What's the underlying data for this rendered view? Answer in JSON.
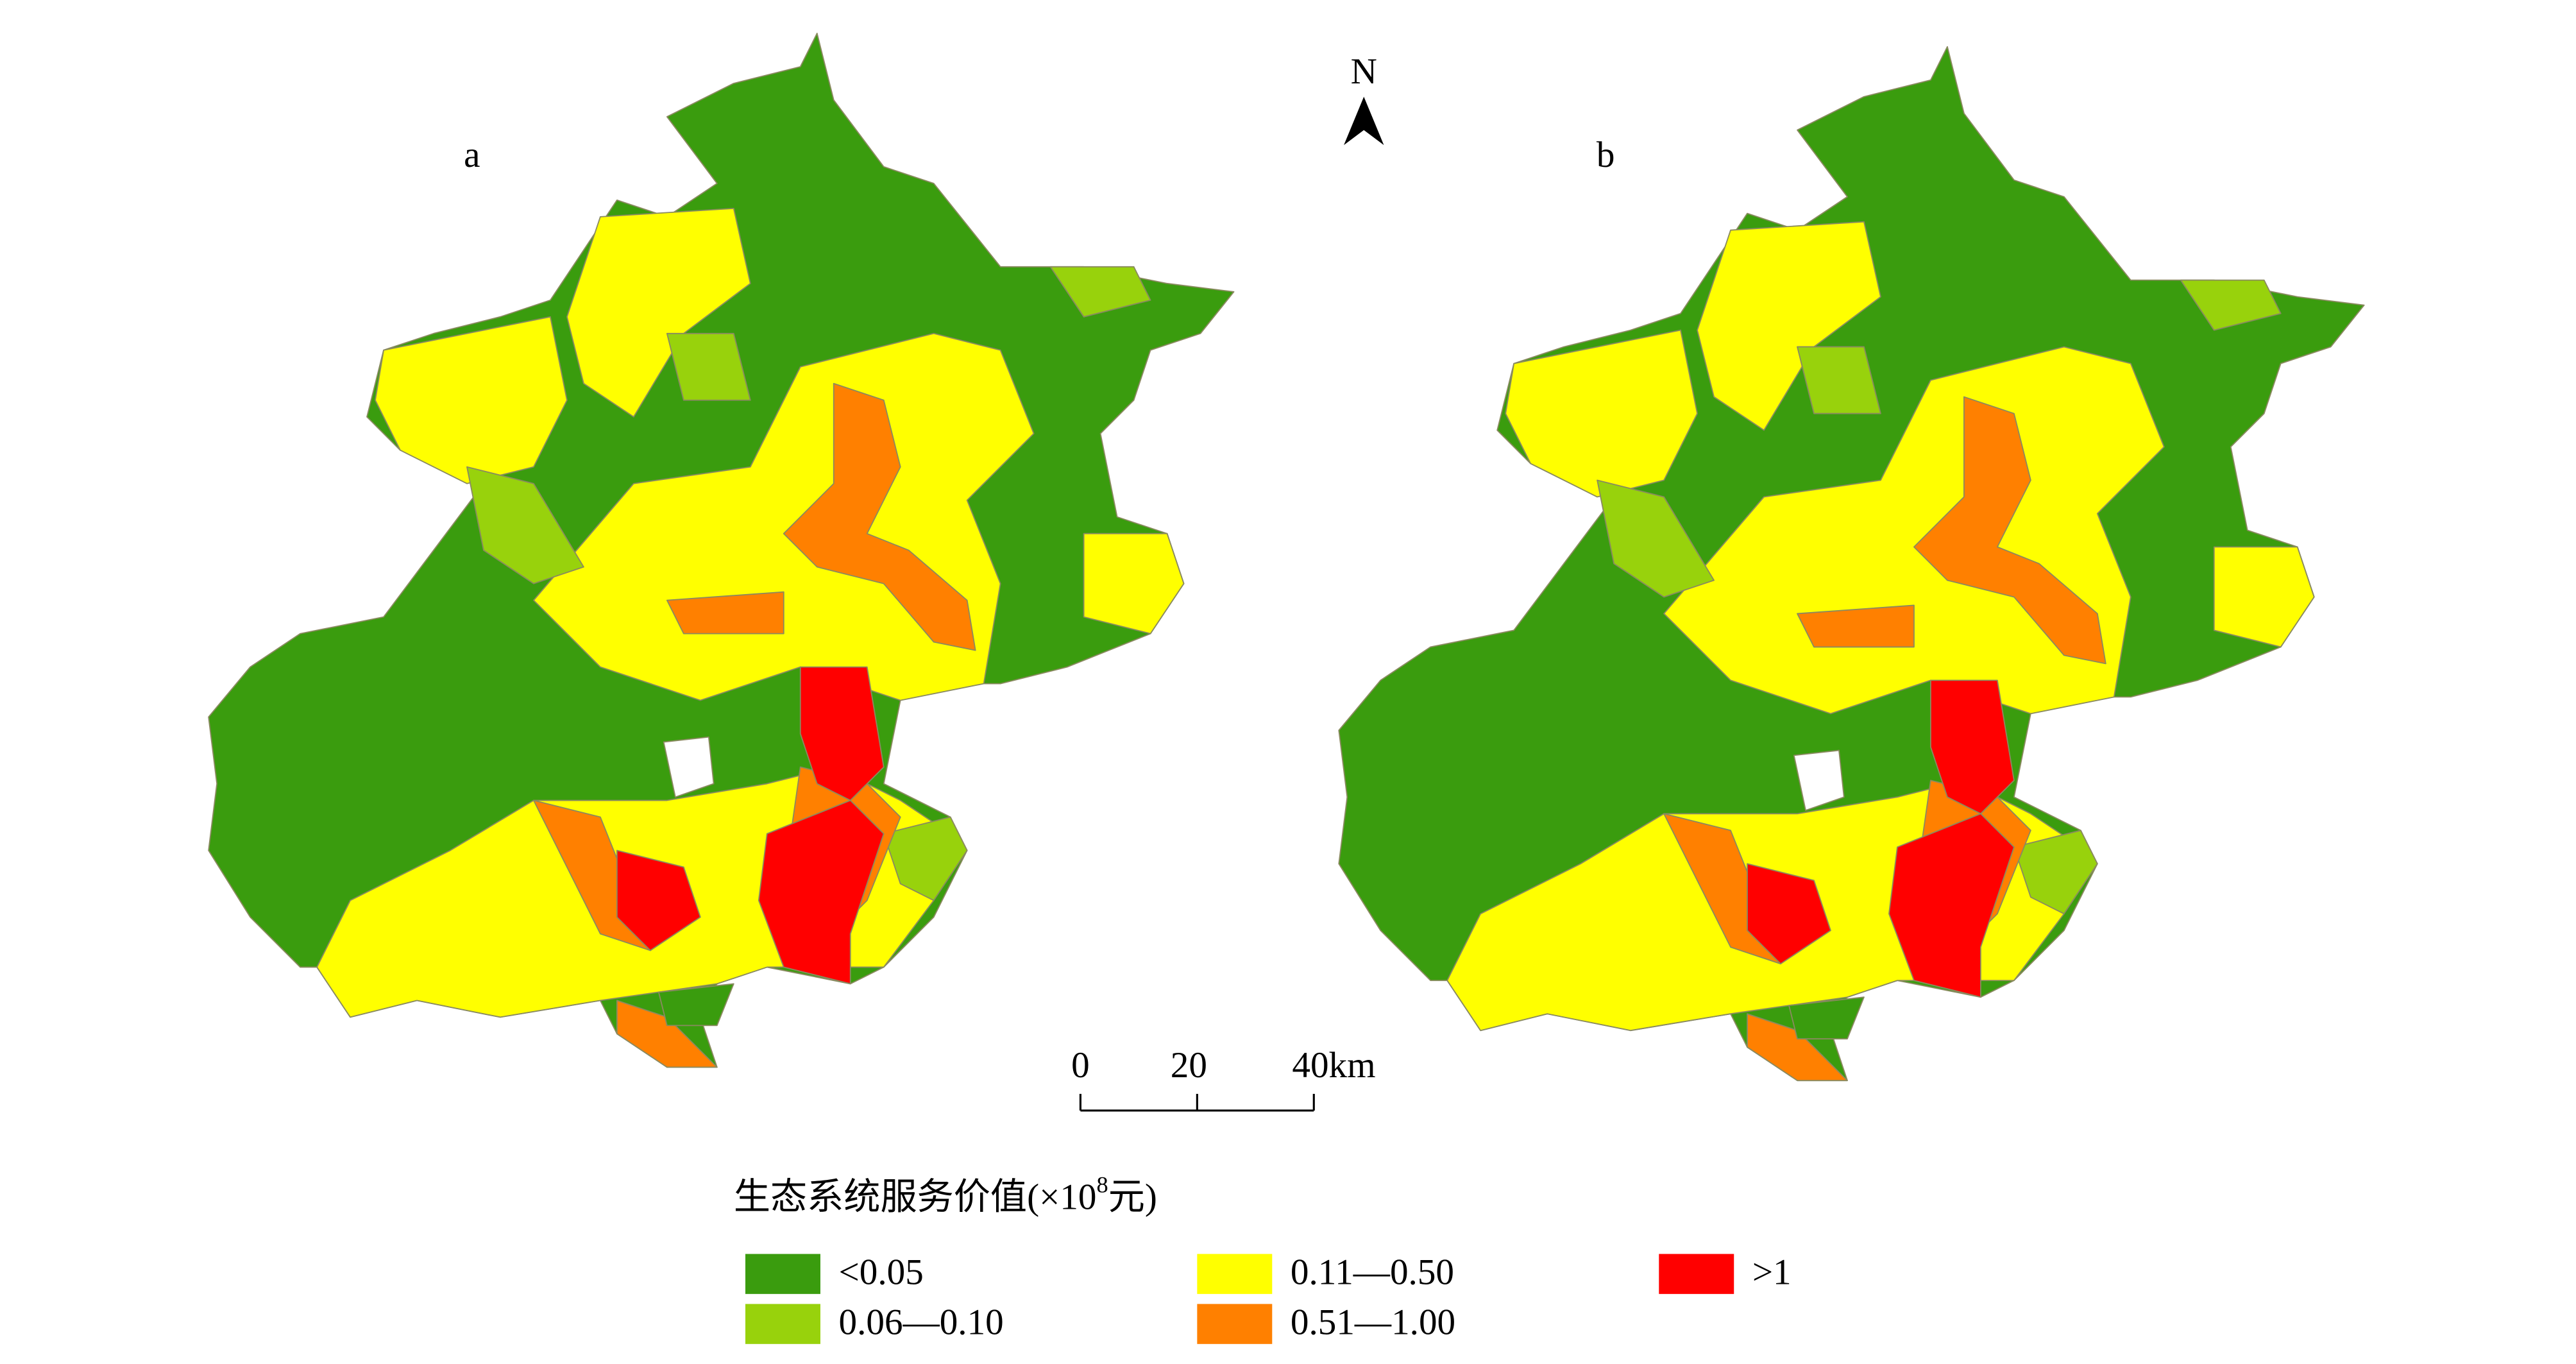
{
  "panels": {
    "a": "a",
    "b": "b"
  },
  "north_arrow": "N",
  "scale_bar": {
    "labels": [
      "0",
      "20",
      "40km"
    ]
  },
  "legend": {
    "title_parts": [
      "生态系统服务价值(×10",
      "8",
      "元)"
    ],
    "items": [
      {
        "label": "<0.05",
        "color": "#3a9c0e"
      },
      {
        "label": "0.06—0.10",
        "color": "#98d20c"
      },
      {
        "label": "0.11—0.50",
        "color": "#ffff00"
      },
      {
        "label": "0.51—1.00",
        "color": "#ff8000"
      },
      {
        "label": ">1",
        "color": "#ff0000"
      }
    ]
  }
}
